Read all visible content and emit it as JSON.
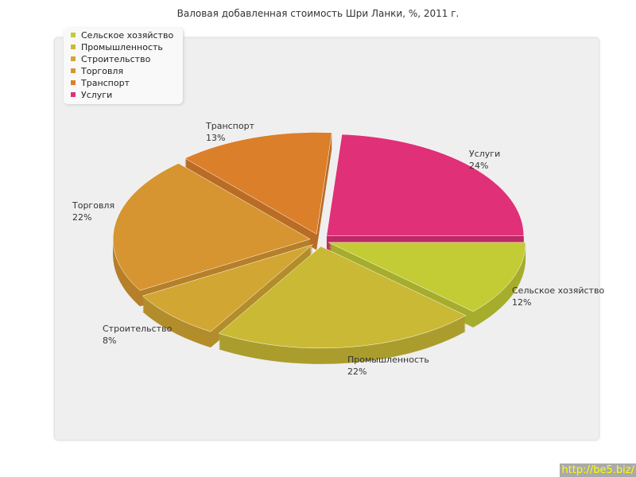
{
  "chart_data": {
    "type": "pie",
    "title": "Валовая добавленная стоимость Шри Ланки, %, 2011 г.",
    "legend_position": "top-left",
    "three_d": true,
    "slices": [
      {
        "label": "Сельское хозяйство",
        "value": 12,
        "pct": "12%",
        "color": "#c3cc35"
      },
      {
        "label": "Промышленность",
        "value": 22,
        "pct": "22%",
        "color": "#c9b935"
      },
      {
        "label": "Строительство",
        "value": 8,
        "pct": "8%",
        "color": "#d2a632"
      },
      {
        "label": "Торговля",
        "value": 22,
        "pct": "22%",
        "color": "#d69530"
      },
      {
        "label": "Транспорт",
        "value": 13,
        "pct": "13%",
        "color": "#db7f2b"
      },
      {
        "label": "Услуги",
        "value": 24,
        "pct": "24%",
        "color": "#e03077"
      }
    ]
  },
  "watermark": "http://be5.biz/"
}
